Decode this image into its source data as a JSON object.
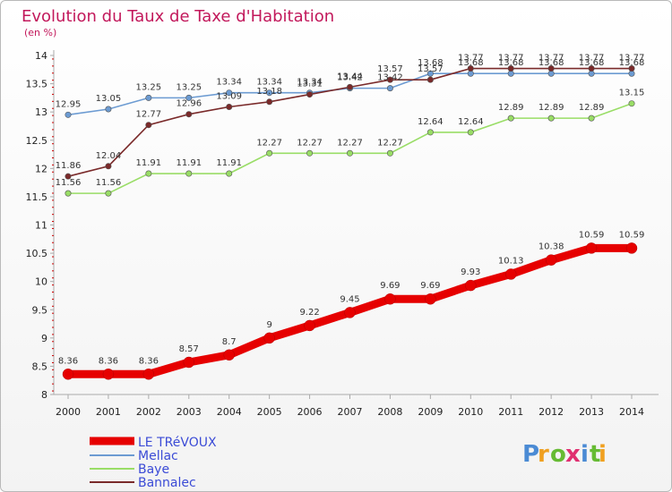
{
  "chart_data": {
    "type": "line",
    "title": "Evolution du Taux de Taxe d'Habitation",
    "subtitle": "(en %)",
    "x": [
      "2000",
      "2001",
      "2002",
      "2003",
      "2004",
      "2005",
      "2006",
      "2007",
      "2008",
      "2009",
      "2010",
      "2011",
      "2012",
      "2013",
      "2014"
    ],
    "ylim": [
      8,
      14
    ],
    "yticks": [
      "8",
      "8.5",
      "9",
      "9.5",
      "10",
      "10.5",
      "11",
      "11.5",
      "12",
      "12.5",
      "13",
      "13.5",
      "14"
    ],
    "grid": false,
    "legend_position": "bottom-left",
    "series": [
      {
        "name": "LE TRéVOUX",
        "color": "#e60000",
        "values": [
          8.36,
          8.36,
          8.36,
          8.57,
          8.7,
          9,
          9.22,
          9.45,
          9.69,
          9.69,
          9.93,
          10.13,
          10.38,
          10.59,
          10.59
        ]
      },
      {
        "name": "Mellac",
        "color": "#6c9bd2",
        "values": [
          12.95,
          13.05,
          13.25,
          13.25,
          13.34,
          13.34,
          13.34,
          13.42,
          13.42,
          13.68,
          13.68,
          13.68,
          13.68,
          13.68,
          13.68
        ]
      },
      {
        "name": "Baye",
        "color": "#99dd66",
        "values": [
          11.56,
          11.56,
          11.91,
          11.91,
          11.91,
          12.27,
          12.27,
          12.27,
          12.27,
          12.64,
          12.64,
          12.89,
          12.89,
          12.89,
          13.15
        ]
      },
      {
        "name": "Bannalec",
        "color": "#7a2a2a",
        "values": [
          11.86,
          12.04,
          12.77,
          12.96,
          13.09,
          13.18,
          13.31,
          13.44,
          13.57,
          13.57,
          13.77,
          13.77,
          13.77,
          13.77,
          13.77
        ]
      }
    ]
  },
  "logo": {
    "letters": [
      "P",
      "r",
      "o",
      "x",
      "i",
      "t",
      "i"
    ],
    "colors": [
      "#4b8bd4",
      "#f0a020",
      "#66bb33",
      "#e03070",
      "#4b8bd4",
      "#66bb33",
      "#f0a020"
    ]
  }
}
